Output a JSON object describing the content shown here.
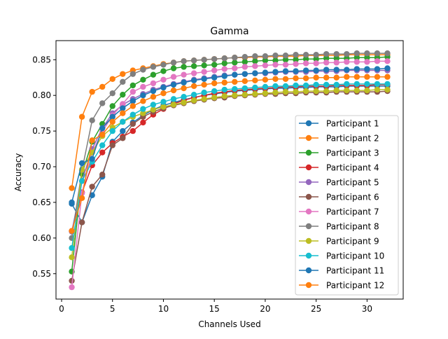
{
  "chart_data": {
    "type": "line",
    "title": "Gamma",
    "xlabel": "Channels Used",
    "ylabel": "Accuracy",
    "xlim": [
      -0.55,
      33.55
    ],
    "ylim": [
      0.5144,
      0.8768
    ],
    "xticks": [
      0,
      5,
      10,
      15,
      20,
      25,
      30
    ],
    "xtick_labels": [
      "0",
      "5",
      "10",
      "15",
      "20",
      "25",
      "30"
    ],
    "yticks": [
      0.55,
      0.6,
      0.65,
      0.7,
      0.75,
      0.8,
      0.85
    ],
    "ytick_labels": [
      "0.55",
      "0.60",
      "0.65",
      "0.70",
      "0.75",
      "0.80",
      "0.85"
    ],
    "grid": false,
    "legend_position": "lower right",
    "x": [
      1,
      2,
      3,
      4,
      5,
      6,
      7,
      8,
      9,
      10,
      11,
      12,
      13,
      14,
      15,
      16,
      17,
      18,
      19,
      20,
      21,
      22,
      23,
      24,
      25,
      26,
      27,
      28,
      29,
      30,
      31,
      32
    ],
    "series": [
      {
        "name": "Participant 1",
        "color": "#1f77b4",
        "values": [
          0.648,
          0.622,
          0.66,
          0.686,
          0.735,
          0.75,
          0.762,
          0.772,
          0.78,
          0.786,
          0.79,
          0.794,
          0.797,
          0.8,
          0.802,
          0.804,
          0.806,
          0.807,
          0.808,
          0.809,
          0.81,
          0.81,
          0.811,
          0.811,
          0.812,
          0.812,
          0.812,
          0.813,
          0.813,
          0.813,
          0.813,
          0.813
        ]
      },
      {
        "name": "Participant 2",
        "color": "#ff7f0e",
        "values": [
          0.67,
          0.77,
          0.805,
          0.812,
          0.823,
          0.83,
          0.835,
          0.838,
          0.841,
          0.844,
          0.846,
          0.848,
          0.849,
          0.85,
          0.851,
          0.852,
          0.853,
          0.853,
          0.854,
          0.854,
          0.855,
          0.855,
          0.855,
          0.856,
          0.856,
          0.856,
          0.856,
          0.857,
          0.857,
          0.857,
          0.857,
          0.857
        ]
      },
      {
        "name": "Participant 3",
        "color": "#2ca02c",
        "values": [
          0.553,
          0.69,
          0.735,
          0.76,
          0.785,
          0.801,
          0.814,
          0.822,
          0.829,
          0.834,
          0.838,
          0.84,
          0.841,
          0.842,
          0.843,
          0.845,
          0.846,
          0.847,
          0.848,
          0.849,
          0.849,
          0.85,
          0.85,
          0.851,
          0.851,
          0.852,
          0.852,
          0.852,
          0.853,
          0.853,
          0.853,
          0.854
        ]
      },
      {
        "name": "Participant 4",
        "color": "#d62728",
        "values": [
          0.61,
          0.664,
          0.702,
          0.72,
          0.733,
          0.742,
          0.75,
          0.762,
          0.773,
          0.781,
          0.788,
          0.793,
          0.797,
          0.8,
          0.803,
          0.805,
          0.807,
          0.808,
          0.809,
          0.81,
          0.811,
          0.812,
          0.812,
          0.813,
          0.813,
          0.813,
          0.814,
          0.814,
          0.814,
          0.814,
          0.815,
          0.815
        ]
      },
      {
        "name": "Participant 5",
        "color": "#9467bd",
        "values": [
          0.609,
          0.68,
          0.725,
          0.754,
          0.775,
          0.787,
          0.795,
          0.802,
          0.808,
          0.812,
          0.816,
          0.819,
          0.822,
          0.824,
          0.826,
          0.828,
          0.829,
          0.83,
          0.831,
          0.831,
          0.832,
          0.833,
          0.833,
          0.833,
          0.834,
          0.834,
          0.834,
          0.835,
          0.835,
          0.835,
          0.835,
          0.835
        ]
      },
      {
        "name": "Participant 6",
        "color": "#8c564b",
        "values": [
          0.54,
          0.622,
          0.672,
          0.689,
          0.73,
          0.74,
          0.76,
          0.77,
          0.777,
          0.782,
          0.786,
          0.789,
          0.792,
          0.794,
          0.796,
          0.797,
          0.799,
          0.8,
          0.801,
          0.802,
          0.802,
          0.803,
          0.803,
          0.804,
          0.804,
          0.804,
          0.805,
          0.805,
          0.805,
          0.805,
          0.805,
          0.806
        ]
      },
      {
        "name": "Participant 7",
        "color": "#e377c2",
        "values": [
          0.531,
          0.663,
          0.72,
          0.749,
          0.772,
          0.788,
          0.805,
          0.812,
          0.817,
          0.822,
          0.826,
          0.829,
          0.831,
          0.833,
          0.835,
          0.837,
          0.838,
          0.84,
          0.841,
          0.842,
          0.843,
          0.843,
          0.844,
          0.845,
          0.845,
          0.846,
          0.846,
          0.847,
          0.847,
          0.847,
          0.848,
          0.848
        ]
      },
      {
        "name": "Participant 8",
        "color": "#7f7f7f",
        "values": [
          0.6,
          0.695,
          0.765,
          0.789,
          0.803,
          0.819,
          0.83,
          0.836,
          0.84,
          0.843,
          0.846,
          0.848,
          0.849,
          0.85,
          0.851,
          0.852,
          0.853,
          0.854,
          0.855,
          0.855,
          0.856,
          0.856,
          0.857,
          0.857,
          0.857,
          0.858,
          0.858,
          0.858,
          0.859,
          0.859,
          0.859,
          0.859
        ]
      },
      {
        "name": "Participant 9",
        "color": "#bcbd22",
        "values": [
          0.573,
          0.696,
          0.72,
          0.743,
          0.755,
          0.763,
          0.77,
          0.775,
          0.78,
          0.784,
          0.787,
          0.79,
          0.793,
          0.795,
          0.797,
          0.799,
          0.8,
          0.801,
          0.802,
          0.803,
          0.804,
          0.805,
          0.805,
          0.806,
          0.806,
          0.806,
          0.807,
          0.807,
          0.807,
          0.807,
          0.808,
          0.808
        ]
      },
      {
        "name": "Participant 10",
        "color": "#17becf",
        "values": [
          0.586,
          0.68,
          0.707,
          0.73,
          0.75,
          0.763,
          0.773,
          0.781,
          0.787,
          0.791,
          0.795,
          0.798,
          0.801,
          0.804,
          0.806,
          0.808,
          0.809,
          0.81,
          0.811,
          0.812,
          0.813,
          0.813,
          0.814,
          0.814,
          0.815,
          0.815,
          0.815,
          0.816,
          0.816,
          0.816,
          0.816,
          0.816
        ]
      },
      {
        "name": "Participant 11",
        "color": "#1f77b4",
        "values": [
          0.65,
          0.705,
          0.711,
          0.754,
          0.77,
          0.782,
          0.792,
          0.8,
          0.806,
          0.811,
          0.815,
          0.818,
          0.821,
          0.823,
          0.825,
          0.827,
          0.829,
          0.83,
          0.831,
          0.832,
          0.833,
          0.834,
          0.834,
          0.835,
          0.835,
          0.836,
          0.836,
          0.836,
          0.837,
          0.837,
          0.837,
          0.838
        ]
      },
      {
        "name": "Participant 12",
        "color": "#ff7f0e",
        "values": [
          0.61,
          0.656,
          0.737,
          0.745,
          0.763,
          0.775,
          0.785,
          0.792,
          0.798,
          0.803,
          0.807,
          0.81,
          0.813,
          0.815,
          0.817,
          0.818,
          0.819,
          0.82,
          0.821,
          0.822,
          0.823,
          0.823,
          0.824,
          0.824,
          0.825,
          0.825,
          0.825,
          0.826,
          0.826,
          0.826,
          0.826,
          0.826
        ]
      }
    ]
  }
}
